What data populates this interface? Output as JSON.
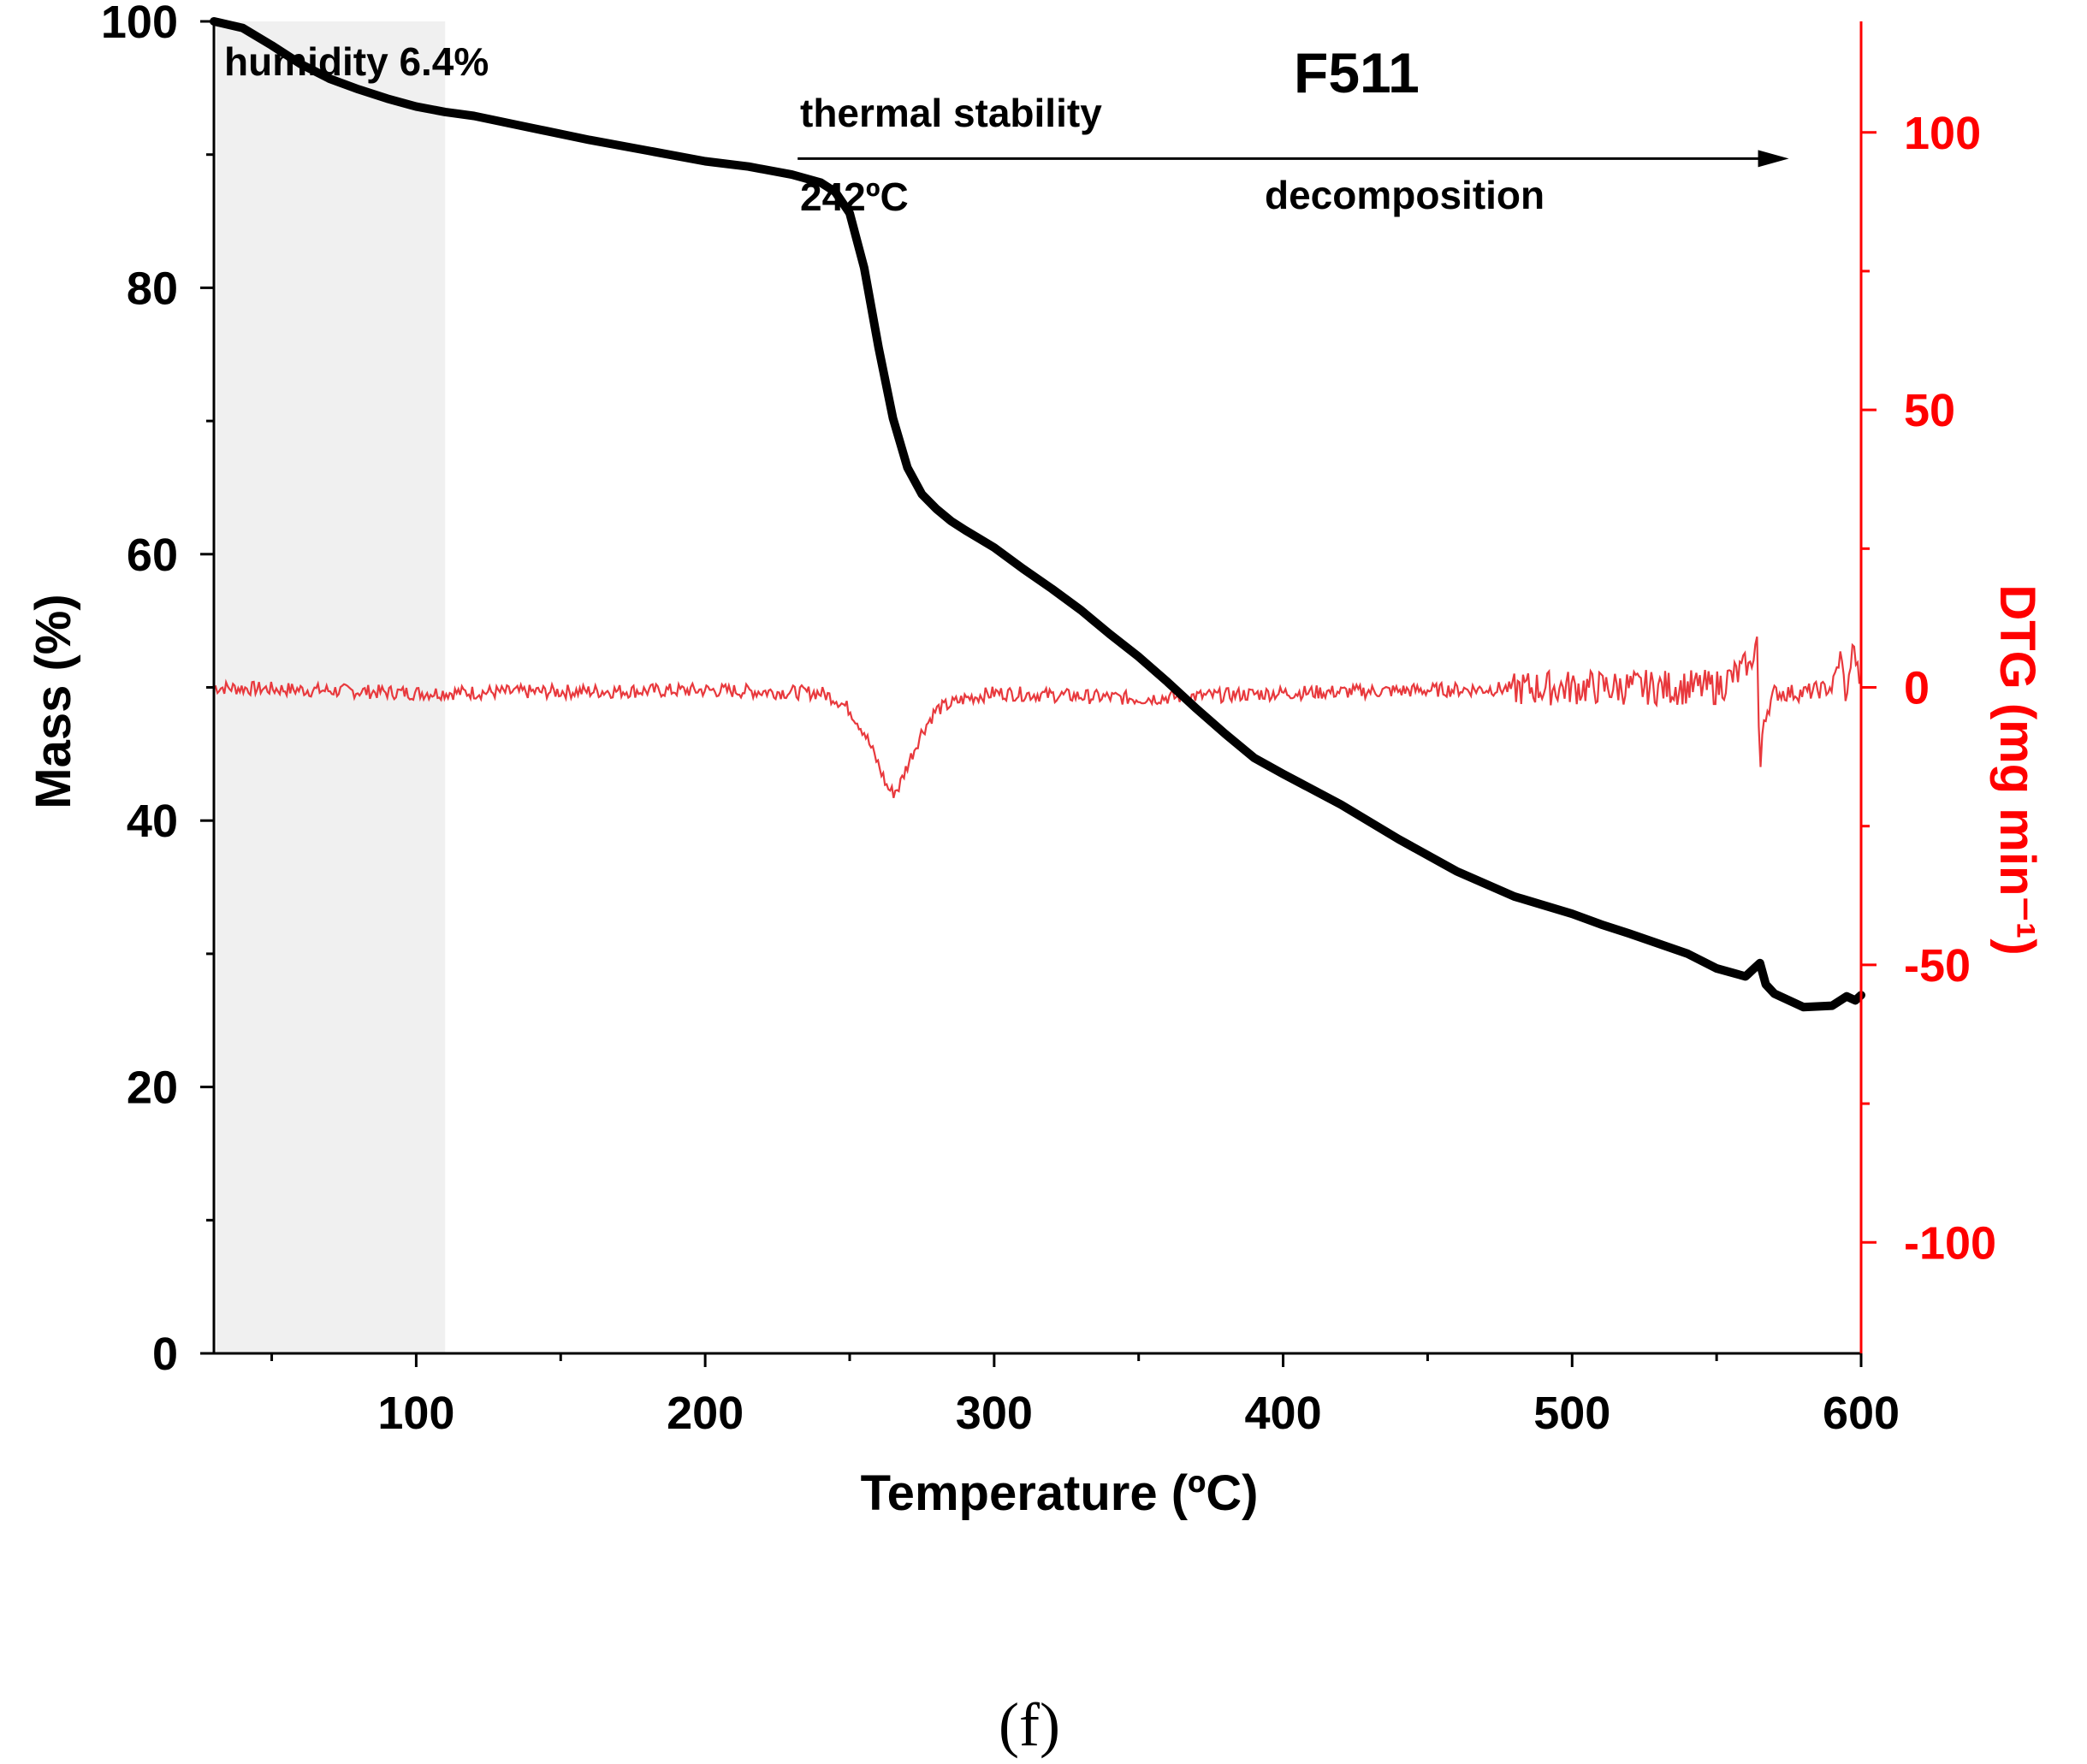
{
  "chart_data": {
    "type": "line",
    "title": "F511",
    "xlabel": "Temperature (ºC)",
    "ylabel": "Mass (%)",
    "y2label": "DTG (mg min⁻¹)",
    "xlim": [
      30,
      600
    ],
    "ylim": [
      0,
      100
    ],
    "y2lim": [
      -120,
      120
    ],
    "xticks": [
      100,
      200,
      300,
      400,
      500,
      600
    ],
    "yticks": [
      0,
      20,
      40,
      60,
      80,
      100
    ],
    "y2ticks": [
      -100,
      -50,
      0,
      50,
      100
    ],
    "colors": {
      "mass": "#000000",
      "dtg": "#e8393d",
      "y2axis": "#ff0000",
      "shade": "#f0f0f0"
    },
    "shaded_region": {
      "x": [
        30,
        110
      ],
      "label": "humidity 6.4%"
    },
    "annotations": {
      "thermal_stability": "thermal stability",
      "onset": "242ºC",
      "decomposition": "decomposition",
      "arrow_x": [
        232,
        575
      ],
      "arrow_y": 89.7
    },
    "series": [
      {
        "name": "Mass",
        "axis": "left",
        "x": [
          30,
          40,
          50,
          60,
          70,
          80,
          90,
          100,
          110,
          120,
          140,
          160,
          180,
          200,
          215,
          230,
          240,
          245,
          250,
          255,
          260,
          265,
          270,
          275,
          280,
          285,
          290,
          300,
          310,
          320,
          330,
          340,
          350,
          360,
          370,
          380,
          390,
          400,
          420,
          440,
          460,
          480,
          500,
          510,
          520,
          540,
          550,
          560,
          563,
          565,
          567,
          570,
          580,
          590,
          595,
          598,
          600
        ],
        "y": [
          100,
          99.5,
          98.2,
          96.8,
          95.7,
          94.9,
          94.2,
          93.6,
          93.2,
          92.9,
          92.0,
          91.1,
          90.3,
          89.5,
          89.1,
          88.5,
          87.9,
          87.2,
          85.6,
          81.5,
          75.5,
          70.2,
          66.5,
          64.5,
          63.4,
          62.5,
          61.8,
          60.5,
          58.9,
          57.4,
          55.8,
          54.0,
          52.3,
          50.4,
          48.4,
          46.5,
          44.7,
          43.5,
          41.2,
          38.6,
          36.2,
          34.3,
          33.0,
          32.2,
          31.5,
          30.0,
          28.9,
          28.3,
          28.9,
          29.3,
          27.7,
          27.0,
          26.0,
          26.1,
          26.8,
          26.5,
          26.9
        ]
      },
      {
        "name": "DTG",
        "axis": "right",
        "x": [
          30,
          100,
          200,
          240,
          245,
          250,
          255,
          260,
          263,
          265,
          267,
          270,
          275,
          280,
          290,
          300,
          350,
          400,
          450,
          500,
          550,
          562,
          564,
          565,
          566,
          570,
          580,
          590,
          593,
          595,
          597,
          600
        ],
        "y": [
          0,
          -1,
          -0.5,
          -1,
          -2,
          -4,
          -8,
          -14,
          -18,
          -19,
          -18,
          -14,
          -8,
          -4,
          -2,
          -1,
          -2,
          -1,
          -0.5,
          0,
          0,
          4,
          9,
          -18,
          -6,
          -1,
          -1,
          0,
          6,
          -3,
          8,
          0
        ]
      }
    ]
  },
  "caption": "(f)"
}
